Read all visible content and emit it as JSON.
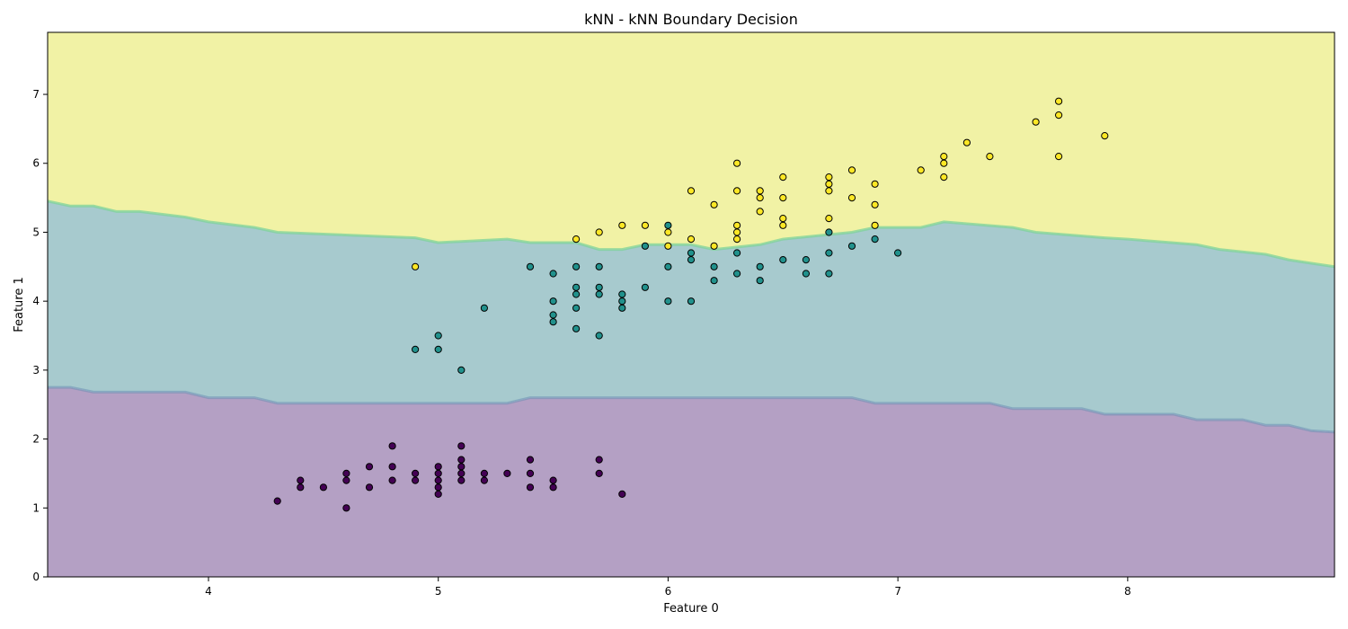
{
  "chart_data": {
    "type": "scatter",
    "title": "kNN - kNN Boundary Decision",
    "xlabel": "Feature 0",
    "ylabel": "Feature 1",
    "xlim": [
      3.3,
      8.9
    ],
    "ylim": [
      0,
      7.9
    ],
    "xticks": [
      4,
      5,
      6,
      7,
      8
    ],
    "yticks": [
      0,
      1,
      2,
      3,
      4,
      5,
      6,
      7
    ],
    "grid": false,
    "legend": "none",
    "regions": [
      {
        "class": 0,
        "color": "#b4a0c4"
      },
      {
        "class": 1,
        "color": "#a7cace"
      },
      {
        "class": 2,
        "color": "#f1f2a5"
      }
    ],
    "boundaries": [
      {
        "between": [
          0,
          1
        ],
        "x": [
          3.3,
          3.4,
          3.5,
          3.9,
          4.0,
          4.2,
          4.3,
          5.3,
          5.4,
          6.8,
          6.9,
          7.4,
          7.5,
          7.8,
          7.9,
          8.2,
          8.3,
          8.5,
          8.6,
          8.7,
          8.8,
          8.9
        ],
        "y": [
          2.75,
          2.75,
          2.68,
          2.68,
          2.6,
          2.6,
          2.52,
          2.52,
          2.6,
          2.6,
          2.52,
          2.52,
          2.44,
          2.44,
          2.36,
          2.36,
          2.28,
          2.28,
          2.2,
          2.2,
          2.12,
          2.1
        ]
      },
      {
        "between": [
          1,
          2
        ],
        "x": [
          3.3,
          3.4,
          3.5,
          3.6,
          3.7,
          3.9,
          4.0,
          4.2,
          4.3,
          4.9,
          5.0,
          5.3,
          5.4,
          5.6,
          5.7,
          5.8,
          5.9,
          6.1,
          6.2,
          6.4,
          6.5,
          6.8,
          6.9,
          7.1,
          7.2,
          7.5,
          7.6,
          7.9,
          8.0,
          8.3,
          8.4,
          8.6,
          8.7,
          8.8,
          8.9
        ],
        "y": [
          5.45,
          5.38,
          5.38,
          5.3,
          5.3,
          5.22,
          5.15,
          5.07,
          5.0,
          4.92,
          4.85,
          4.9,
          4.85,
          4.85,
          4.75,
          4.75,
          4.82,
          4.82,
          4.75,
          4.82,
          4.9,
          5.0,
          5.07,
          5.07,
          5.15,
          5.07,
          5.0,
          4.92,
          4.9,
          4.82,
          4.75,
          4.68,
          4.6,
          4.55,
          4.5
        ]
      }
    ],
    "series": [
      {
        "class": 0,
        "color": "#440154",
        "points": [
          [
            4.3,
            1.1
          ],
          [
            4.4,
            1.4
          ],
          [
            4.4,
            1.3
          ],
          [
            4.5,
            1.3
          ],
          [
            4.6,
            1.5
          ],
          [
            4.6,
            1.4
          ],
          [
            4.6,
            1.0
          ],
          [
            4.7,
            1.6
          ],
          [
            4.7,
            1.3
          ],
          [
            4.8,
            1.9
          ],
          [
            4.8,
            1.6
          ],
          [
            4.8,
            1.4
          ],
          [
            4.9,
            1.5
          ],
          [
            4.9,
            1.4
          ],
          [
            5.0,
            1.6
          ],
          [
            5.0,
            1.5
          ],
          [
            5.0,
            1.4
          ],
          [
            5.0,
            1.3
          ],
          [
            5.0,
            1.2
          ],
          [
            5.1,
            1.9
          ],
          [
            5.1,
            1.7
          ],
          [
            5.1,
            1.6
          ],
          [
            5.1,
            1.5
          ],
          [
            5.1,
            1.4
          ],
          [
            5.2,
            1.5
          ],
          [
            5.2,
            1.4
          ],
          [
            5.3,
            1.5
          ],
          [
            5.4,
            1.7
          ],
          [
            5.4,
            1.5
          ],
          [
            5.4,
            1.3
          ],
          [
            5.5,
            1.4
          ],
          [
            5.5,
            1.3
          ],
          [
            5.7,
            1.7
          ],
          [
            5.7,
            1.5
          ],
          [
            5.8,
            1.2
          ]
        ]
      },
      {
        "class": 1,
        "color": "#21918c",
        "points": [
          [
            4.9,
            3.3
          ],
          [
            5.0,
            3.5
          ],
          [
            5.0,
            3.3
          ],
          [
            5.1,
            3.0
          ],
          [
            5.2,
            3.9
          ],
          [
            5.4,
            4.5
          ],
          [
            5.5,
            4.4
          ],
          [
            5.5,
            4.0
          ],
          [
            5.5,
            3.8
          ],
          [
            5.5,
            3.7
          ],
          [
            5.6,
            4.5
          ],
          [
            5.6,
            4.2
          ],
          [
            5.6,
            4.1
          ],
          [
            5.6,
            3.9
          ],
          [
            5.6,
            3.6
          ],
          [
            5.7,
            4.5
          ],
          [
            5.7,
            4.2
          ],
          [
            5.7,
            4.1
          ],
          [
            5.7,
            3.5
          ],
          [
            5.8,
            4.1
          ],
          [
            5.8,
            4.0
          ],
          [
            5.8,
            3.9
          ],
          [
            5.9,
            4.8
          ],
          [
            5.9,
            4.2
          ],
          [
            6.0,
            5.1
          ],
          [
            6.0,
            4.5
          ],
          [
            6.0,
            4.0
          ],
          [
            6.1,
            4.7
          ],
          [
            6.1,
            4.6
          ],
          [
            6.1,
            4.0
          ],
          [
            6.2,
            4.5
          ],
          [
            6.2,
            4.3
          ],
          [
            6.3,
            4.7
          ],
          [
            6.3,
            4.4
          ],
          [
            6.4,
            4.5
          ],
          [
            6.4,
            4.3
          ],
          [
            6.5,
            4.6
          ],
          [
            6.6,
            4.6
          ],
          [
            6.6,
            4.4
          ],
          [
            6.7,
            5.0
          ],
          [
            6.7,
            4.7
          ],
          [
            6.7,
            4.4
          ],
          [
            6.8,
            4.8
          ],
          [
            6.9,
            4.9
          ],
          [
            7.0,
            4.7
          ]
        ]
      },
      {
        "class": 2,
        "color": "#fde725",
        "points": [
          [
            4.9,
            4.5
          ],
          [
            5.6,
            4.9
          ],
          [
            5.7,
            5.0
          ],
          [
            5.8,
            5.1
          ],
          [
            5.9,
            5.1
          ],
          [
            6.0,
            5.0
          ],
          [
            6.0,
            4.8
          ],
          [
            6.1,
            5.6
          ],
          [
            6.1,
            4.9
          ],
          [
            6.2,
            5.4
          ],
          [
            6.2,
            4.8
          ],
          [
            6.3,
            6.0
          ],
          [
            6.3,
            5.6
          ],
          [
            6.3,
            5.1
          ],
          [
            6.3,
            5.0
          ],
          [
            6.3,
            4.9
          ],
          [
            6.4,
            5.6
          ],
          [
            6.4,
            5.5
          ],
          [
            6.4,
            5.3
          ],
          [
            6.5,
            5.8
          ],
          [
            6.5,
            5.5
          ],
          [
            6.5,
            5.2
          ],
          [
            6.5,
            5.1
          ],
          [
            6.7,
            5.8
          ],
          [
            6.7,
            5.7
          ],
          [
            6.7,
            5.6
          ],
          [
            6.7,
            5.2
          ],
          [
            6.8,
            5.9
          ],
          [
            6.8,
            5.5
          ],
          [
            6.9,
            5.7
          ],
          [
            6.9,
            5.4
          ],
          [
            6.9,
            5.1
          ],
          [
            7.1,
            5.9
          ],
          [
            7.2,
            6.1
          ],
          [
            7.2,
            6.0
          ],
          [
            7.2,
            5.8
          ],
          [
            7.3,
            6.3
          ],
          [
            7.4,
            6.1
          ],
          [
            7.6,
            6.6
          ],
          [
            7.7,
            6.9
          ],
          [
            7.7,
            6.7
          ],
          [
            7.7,
            6.1
          ],
          [
            7.9,
            6.4
          ]
        ]
      }
    ]
  }
}
